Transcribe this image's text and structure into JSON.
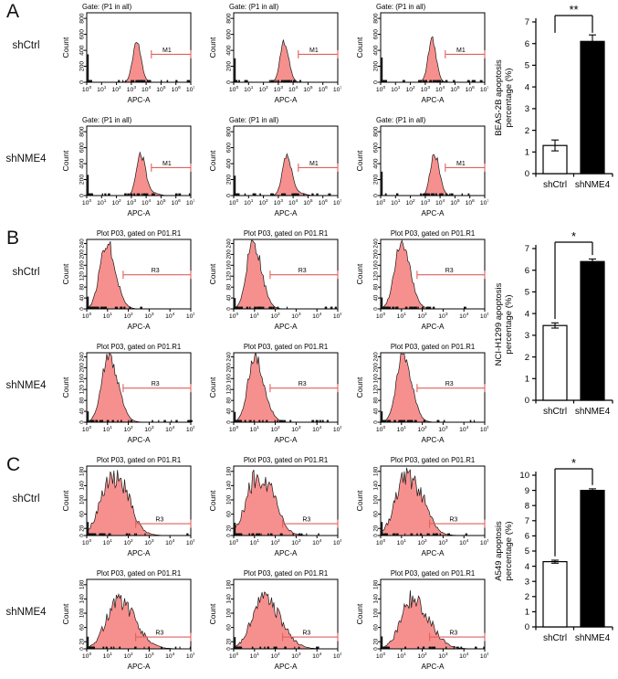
{
  "colors": {
    "hist_fill": "#f6908e",
    "hist_stroke": "#1a1a1a",
    "gate": "#e0615d",
    "axis": "#000000",
    "bar_ctrl_fill": "#ffffff",
    "bar_kd_fill": "#000000"
  },
  "chart_data": [
    {
      "panel": "A",
      "type": "flow-histogram-grid-with-bar-summary",
      "rows": [
        "shCtrl",
        "shNME4"
      ],
      "hist": {
        "title": "Gate: (P1 in all)",
        "title_align": "left",
        "xlabel": "APC-A",
        "ylabel": "Count",
        "xmin_exp": 0,
        "xmax_exp": 7,
        "yticks": [
          0,
          200,
          400,
          600,
          800
        ],
        "ymax": 870,
        "ytick_font": 6.8,
        "gate": {
          "label": "M1",
          "from_log": 4.35,
          "to_log": 7.0,
          "y": 350,
          "label_log": 5.4
        },
        "cells": [
          [
            {
              "peak_log": 3.35,
              "peak": 505,
              "sl": 0.26,
              "sr": 0.3,
              "spike": 350,
              "noise": 0.1,
              "seed": 11
            },
            {
              "peak_log": 3.4,
              "peak": 520,
              "sl": 0.27,
              "sr": 0.3,
              "spike": 300,
              "noise": 0.1,
              "seed": 22
            },
            {
              "peak_log": 3.45,
              "peak": 530,
              "sl": 0.26,
              "sr": 0.28,
              "spike": 310,
              "noise": 0.1,
              "seed": 33
            }
          ],
          [
            {
              "peak_log": 3.62,
              "peak": 520,
              "sl": 0.28,
              "sr": 0.34,
              "spike": 260,
              "noise": 0.1,
              "seed": 44,
              "bump": {
                "c": 4.6,
                "h": 26,
                "s": 0.3
              }
            },
            {
              "peak_log": 3.55,
              "peak": 515,
              "sl": 0.28,
              "sr": 0.36,
              "spike": 250,
              "noise": 0.1,
              "seed": 55,
              "bump": {
                "c": 4.6,
                "h": 24,
                "s": 0.3
              }
            },
            {
              "peak_log": 3.6,
              "peak": 540,
              "sl": 0.26,
              "sr": 0.33,
              "spike": 300,
              "noise": 0.1,
              "seed": 66
            }
          ]
        ]
      },
      "bar": {
        "ylabel_lines": [
          "BEAS-2B apoptosis",
          "percentage (%)"
        ],
        "categories": [
          "shCtrl",
          "shNME4"
        ],
        "values": [
          1.3,
          6.1
        ],
        "errors": [
          0.25,
          0.3
        ],
        "ymax": 7,
        "yticks": [
          0,
          1,
          2,
          3,
          4,
          5,
          6,
          7
        ],
        "significance": "**",
        "drop_to": [
          6.5,
          6.5
        ]
      }
    },
    {
      "panel": "B",
      "type": "flow-histogram-grid-with-bar-summary",
      "rows": [
        "shCtrl",
        "shNME4"
      ],
      "hist": {
        "title": "Plot P03, gated on P01.R1",
        "title_align": "center",
        "xlabel": "APC-A",
        "ylabel": "Count",
        "xmin_exp": 0,
        "xmax_exp": 5,
        "yticks": [
          0,
          40,
          80,
          120,
          160,
          200,
          240
        ],
        "ymax": 255,
        "ytick_font": 6.2,
        "gate": {
          "label": "R3",
          "from_log": 1.75,
          "to_log": 5.0,
          "y": 125,
          "label_log": 3.3
        },
        "cells": [
          [
            {
              "peak_log": 0.95,
              "peak": 246,
              "sl": 0.32,
              "sr": 0.42,
              "spike": 45,
              "noise": 0.12,
              "seed": 77
            },
            {
              "peak_log": 0.92,
              "peak": 248,
              "sl": 0.3,
              "sr": 0.4,
              "spike": 40,
              "noise": 0.12,
              "seed": 88
            },
            {
              "peak_log": 0.98,
              "peak": 244,
              "sl": 0.32,
              "sr": 0.42,
              "spike": 42,
              "noise": 0.12,
              "seed": 99
            }
          ],
          [
            {
              "peak_log": 1.05,
              "peak": 246,
              "sl": 0.33,
              "sr": 0.45,
              "spike": 40,
              "noise": 0.12,
              "seed": 111
            },
            {
              "peak_log": 1.0,
              "peak": 240,
              "sl": 0.32,
              "sr": 0.45,
              "spike": 38,
              "noise": 0.12,
              "seed": 122
            },
            {
              "peak_log": 1.05,
              "peak": 245,
              "sl": 0.3,
              "sr": 0.42,
              "spike": 40,
              "noise": 0.12,
              "seed": 133
            }
          ]
        ]
      },
      "bar": {
        "ylabel_lines": [
          "NCI-H1299 apoptosis",
          "percentage (%)"
        ],
        "categories": [
          "shCtrl",
          "shNME4"
        ],
        "values": [
          3.45,
          6.4
        ],
        "errors": [
          0.12,
          0.12
        ],
        "ymax": 7,
        "yticks": [
          0,
          1,
          2,
          3,
          4,
          5,
          6,
          7
        ],
        "significance": "*",
        "drop_to": [
          3.75,
          6.7
        ]
      }
    },
    {
      "panel": "C",
      "type": "flow-histogram-grid-with-bar-summary",
      "rows": [
        "shCtrl",
        "shNME4"
      ],
      "hist": {
        "title": "Plot P03, gated on P01.R1",
        "title_align": "center",
        "xlabel": "APC-A",
        "ylabel": "Count",
        "xmin_exp": 0,
        "xmax_exp": 5,
        "yticks": [
          0,
          20,
          60,
          100,
          140,
          180
        ],
        "ymax": 195,
        "ytick_font": 6.2,
        "gate": {
          "label": "R3",
          "from_log": 2.35,
          "to_log": 5.0,
          "y": 33,
          "label_log": 3.5
        },
        "cells": [
          [
            {
              "peak_log": 1.15,
              "peak": 162,
              "sl": 0.5,
              "sr": 0.72,
              "spike": 38,
              "noise": 0.2,
              "seed": 144,
              "bump": {
                "c": 1.9,
                "h": 28,
                "s": 0.35
              }
            },
            {
              "peak_log": 1.1,
              "peak": 165,
              "sl": 0.5,
              "sr": 0.7,
              "spike": 36,
              "noise": 0.2,
              "seed": 155,
              "bump": {
                "c": 1.9,
                "h": 26,
                "s": 0.35
              }
            },
            {
              "peak_log": 1.2,
              "peak": 160,
              "sl": 0.5,
              "sr": 0.72,
              "spike": 38,
              "noise": 0.2,
              "seed": 166,
              "bump": {
                "c": 2.0,
                "h": 24,
                "s": 0.35
              }
            }
          ],
          [
            {
              "peak_log": 1.5,
              "peak": 140,
              "sl": 0.55,
              "sr": 0.8,
              "spike": 34,
              "noise": 0.2,
              "seed": 177
            },
            {
              "peak_log": 1.45,
              "peak": 145,
              "sl": 0.55,
              "sr": 0.78,
              "spike": 33,
              "noise": 0.2,
              "seed": 188
            },
            {
              "peak_log": 1.5,
              "peak": 142,
              "sl": 0.52,
              "sr": 0.8,
              "spike": 35,
              "noise": 0.2,
              "seed": 199
            }
          ]
        ]
      },
      "bar": {
        "ylabel_lines": [
          "A549 apoptosis",
          "percentage (%)"
        ],
        "categories": [
          "shCtrl",
          "shNME4"
        ],
        "values": [
          4.3,
          9.0
        ],
        "errors": [
          0.1,
          0.1
        ],
        "ymax": 10,
        "yticks": [
          0,
          1,
          2,
          3,
          4,
          5,
          6,
          7,
          8,
          9,
          10
        ],
        "significance": "*",
        "drop_to": [
          4.65,
          9.35
        ]
      }
    }
  ]
}
